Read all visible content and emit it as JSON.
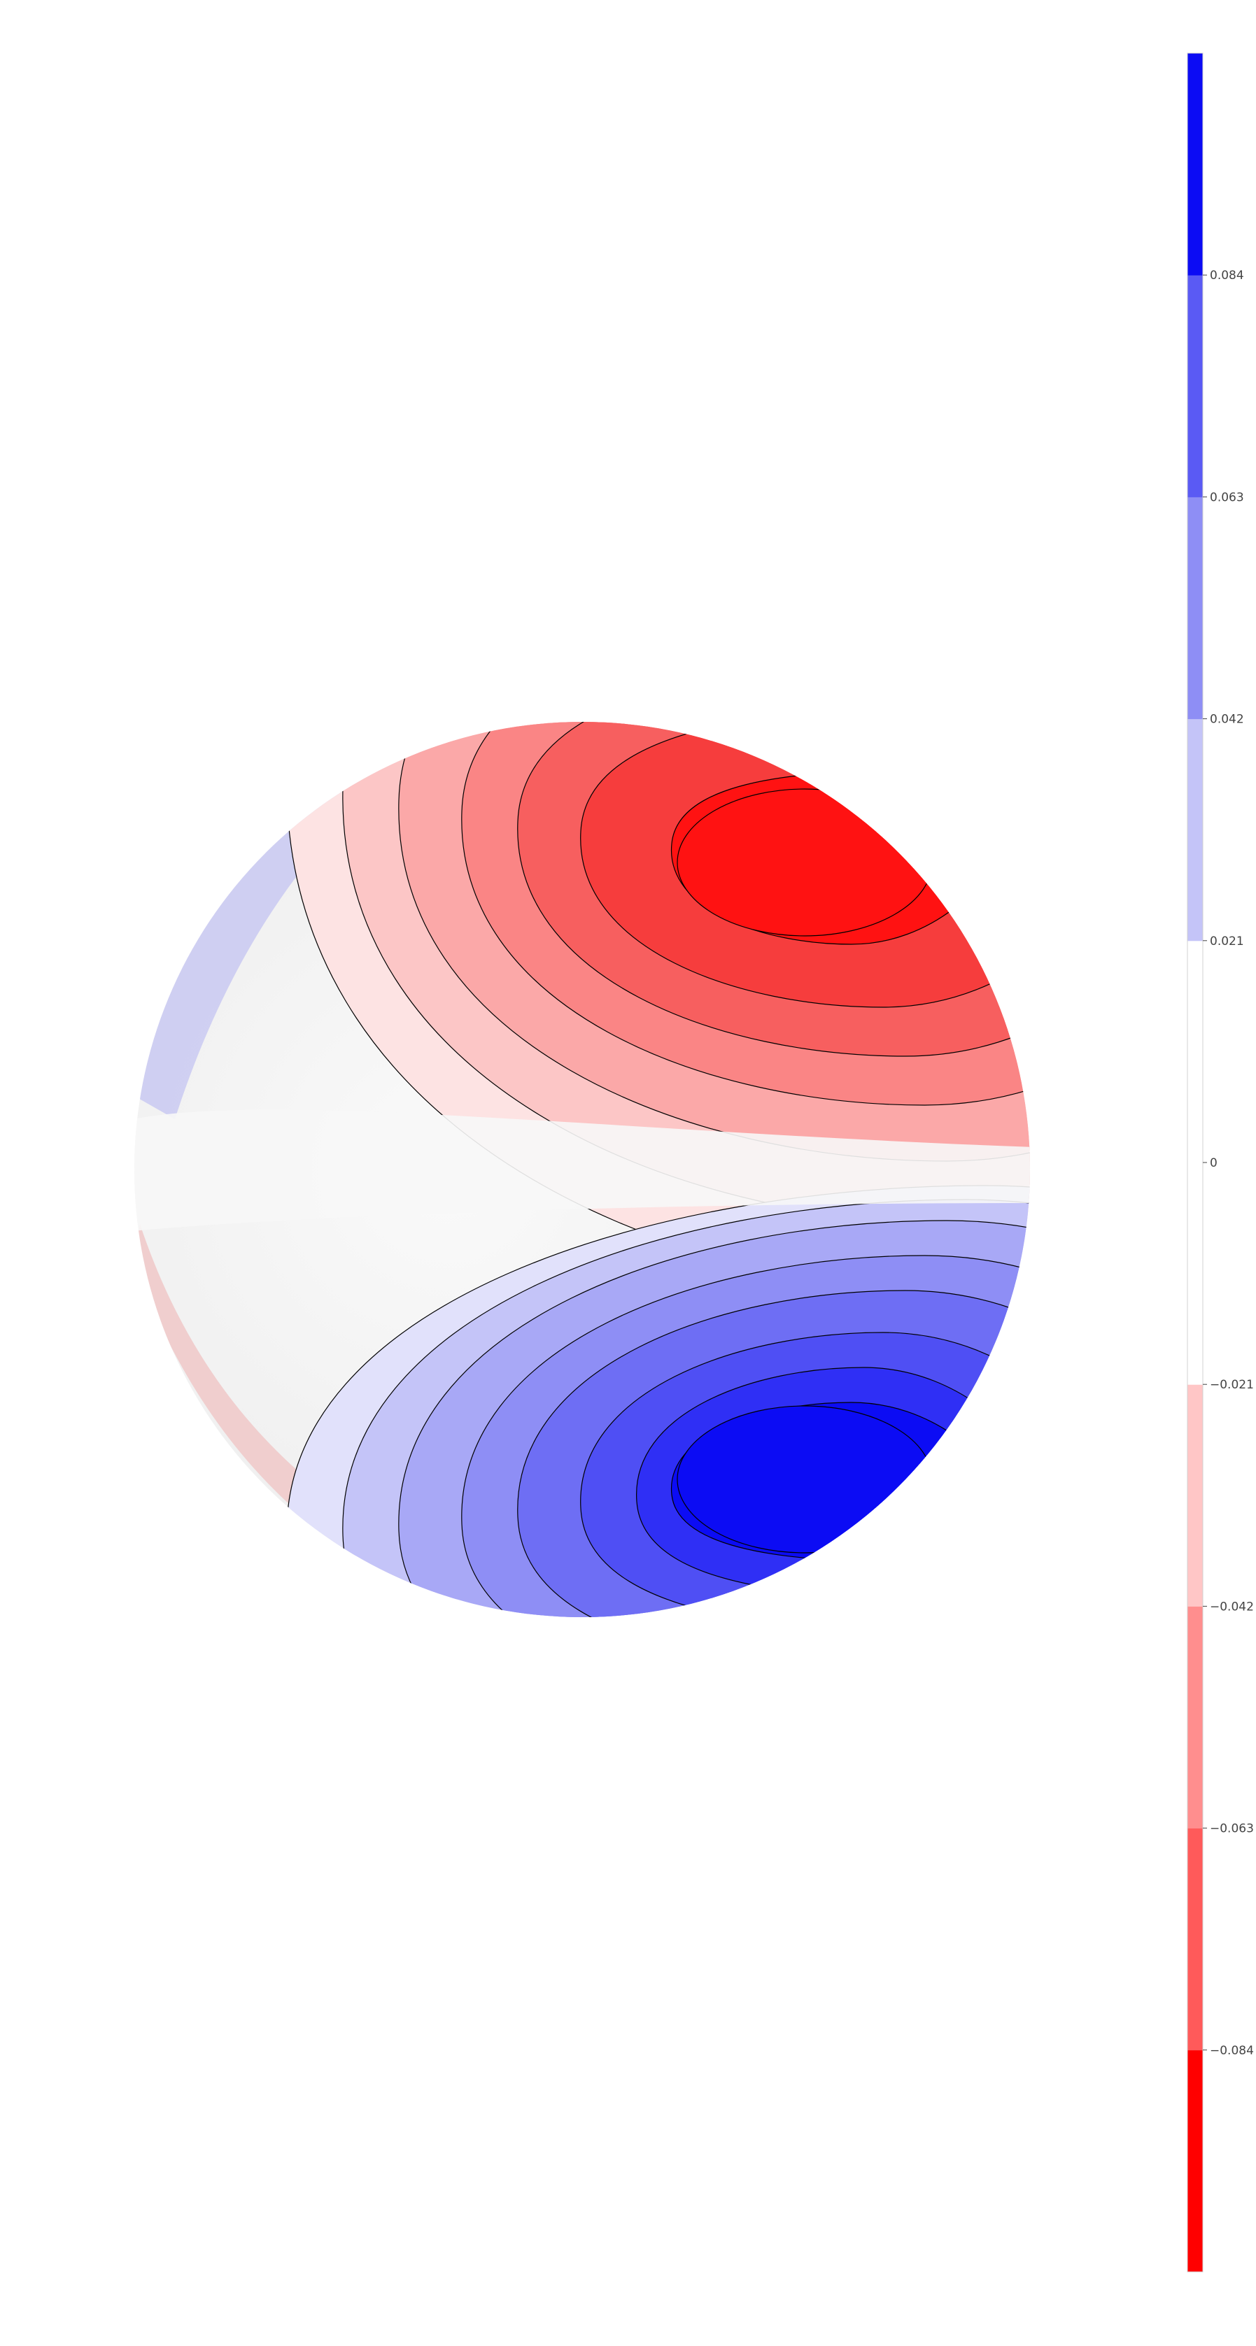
{
  "chart_data": {
    "type": "heatmap",
    "subtype": "filled-contour on sphere",
    "title": "",
    "xlabel": "",
    "ylabel": "",
    "colormap": "bwr_r",
    "colorbar": {
      "placement": "right",
      "range": [
        -0.105,
        0.105
      ],
      "levels": [
        -0.105,
        -0.084,
        -0.063,
        -0.042,
        -0.021,
        0.021,
        0.042,
        0.063,
        0.084,
        0.105
      ],
      "ticks": [
        -0.084,
        -0.063,
        -0.042,
        -0.021,
        0,
        0.021,
        0.042,
        0.063,
        0.084
      ],
      "tick_labels": [
        "−0.084",
        "−0.063",
        "−0.042",
        "−0.021",
        "0",
        "0.021",
        "0.042",
        "0.063",
        "0.084"
      ],
      "colors": [
        "#ff0000",
        "#ff5a5a",
        "#ff8e8e",
        "#ffc6c6",
        "#ffffff",
        "#c4c4f8",
        "#8e8ef5",
        "#5a5af4",
        "#0c0cf4"
      ]
    },
    "field": {
      "positive_extremum": 0.1,
      "negative_extremum": -0.1,
      "positive_lobe": "lower-right hemisphere",
      "negative_lobe": "upper-right hemisphere",
      "contour_levels": [
        -0.1,
        -0.084,
        -0.063,
        -0.042,
        -0.021,
        0.021,
        0.042,
        0.063,
        0.084,
        0.1
      ],
      "contour_color": "#000000"
    }
  }
}
